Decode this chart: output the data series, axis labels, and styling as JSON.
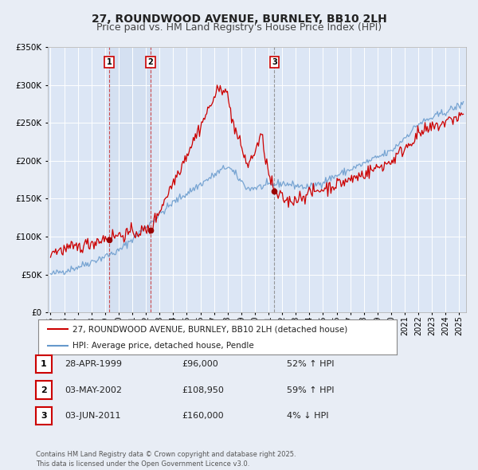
{
  "title": "27, ROUNDWOOD AVENUE, BURNLEY, BB10 2LH",
  "subtitle": "Price paid vs. HM Land Registry's House Price Index (HPI)",
  "ylim": [
    0,
    350000
  ],
  "yticks": [
    0,
    50000,
    100000,
    150000,
    200000,
    250000,
    300000,
    350000
  ],
  "xlim_start": 1994.8,
  "xlim_end": 2025.5,
  "fig_bg_color": "#e8edf5",
  "plot_bg_color": "#dce6f5",
  "grid_color": "#ffffff",
  "red_line_color": "#cc0000",
  "blue_line_color": "#6699cc",
  "transaction_dates": [
    1999.32,
    2002.34,
    2011.43
  ],
  "transaction_prices": [
    96000,
    108950,
    160000
  ],
  "sale_labels": [
    "1",
    "2",
    "3"
  ],
  "sale_date_strs": [
    "28-APR-1999",
    "03-MAY-2002",
    "03-JUN-2011"
  ],
  "sale_price_strs": [
    "£96,000",
    "£108,950",
    "£160,000"
  ],
  "sale_hpi_strs": [
    "52% ↑ HPI",
    "59% ↑ HPI",
    "4% ↓ HPI"
  ],
  "legend_red_label": "27, ROUNDWOOD AVENUE, BURNLEY, BB10 2LH (detached house)",
  "legend_blue_label": "HPI: Average price, detached house, Pendle",
  "footnote": "Contains HM Land Registry data © Crown copyright and database right 2025.\nThis data is licensed under the Open Government Licence v3.0.",
  "title_fontsize": 10,
  "subtitle_fontsize": 9,
  "tick_fontsize": 7.5
}
